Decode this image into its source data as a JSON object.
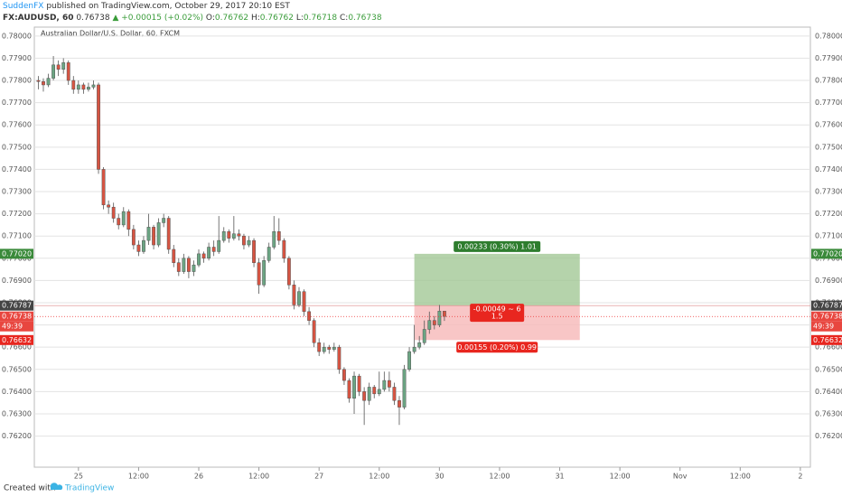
{
  "header": {
    "publisher": "SuddenFX",
    "published": "published on TradingView.com, October 29, 2017 20:10 EST",
    "symbol": "FX:AUDUSD, 60",
    "change": "▲ +0.00015 (+0.02%)",
    "ohlc_prefixes": [
      "O:",
      "H:",
      "L:",
      "C:"
    ]
  },
  "footer": {
    "created": "Created with",
    "brand": "TradingView"
  },
  "chart_data": {
    "type": "candlestick",
    "title": "Australian Dollar/U.S. Dollar, 60, FXCM",
    "up_color": "#6ba583",
    "down_color": "#d75442",
    "grid": true,
    "x": [
      -8,
      -7,
      -6,
      -5,
      -4,
      -3,
      -2,
      -1,
      0,
      1,
      2,
      3,
      4,
      5,
      6,
      7,
      8,
      9,
      10,
      11,
      12,
      13,
      14,
      15,
      16,
      17,
      18,
      19,
      20,
      21,
      22,
      23,
      24,
      25,
      26,
      27,
      28,
      29,
      30,
      31,
      32,
      33,
      34,
      35,
      36,
      37,
      38,
      39,
      40,
      41,
      42,
      43,
      44,
      45,
      46,
      47,
      48,
      49,
      50,
      51,
      52,
      53,
      54,
      55,
      56,
      57,
      58,
      59,
      60,
      61,
      62,
      63,
      64,
      65,
      66,
      67,
      68,
      69,
      70,
      71,
      72,
      73
    ],
    "open": [
      0.778,
      0.77795,
      0.7778,
      0.7781,
      0.7787,
      0.7785,
      0.7788,
      0.778,
      0.7776,
      0.7778,
      0.7776,
      0.7777,
      0.7778,
      0.774,
      0.7724,
      0.7723,
      0.7718,
      0.7715,
      0.7721,
      0.7713,
      0.7706,
      0.7703,
      0.7708,
      0.7714,
      0.7706,
      0.7716,
      0.7718,
      0.7704,
      0.7698,
      0.7694,
      0.77,
      0.7694,
      0.7697,
      0.7702,
      0.77,
      0.7705,
      0.7703,
      0.7708,
      0.7712,
      0.7709,
      0.7711,
      0.771,
      0.7706,
      0.7708,
      0.7698,
      0.7688,
      0.7699,
      0.7705,
      0.7712,
      0.7708,
      0.77,
      0.7688,
      0.7679,
      0.7685,
      0.7676,
      0.7672,
      0.7662,
      0.7658,
      0.766,
      0.7659,
      0.766,
      0.765,
      0.7645,
      0.7637,
      0.7647,
      0.764,
      0.7636,
      0.7642,
      0.7639,
      0.7641,
      0.7645,
      0.7642,
      0.7636,
      0.7633,
      0.765,
      0.7658,
      0.766,
      0.7662,
      0.7668,
      0.7672,
      0.767,
      0.76762
    ],
    "high": [
      0.7782,
      0.7781,
      0.7783,
      0.7791,
      0.7789,
      0.779,
      0.7789,
      0.7782,
      0.778,
      0.7779,
      0.7779,
      0.778,
      0.7779,
      0.7741,
      0.7726,
      0.7725,
      0.772,
      0.7723,
      0.7722,
      0.7715,
      0.7708,
      0.771,
      0.772,
      0.7715,
      0.7718,
      0.772,
      0.7719,
      0.7706,
      0.77,
      0.7702,
      0.7701,
      0.7699,
      0.7704,
      0.7703,
      0.7707,
      0.7708,
      0.7719,
      0.7714,
      0.7713,
      0.7719,
      0.7713,
      0.7711,
      0.771,
      0.7709,
      0.77,
      0.7701,
      0.7707,
      0.7719,
      0.7718,
      0.7709,
      0.7701,
      0.769,
      0.7687,
      0.7686,
      0.7678,
      0.7673,
      0.7664,
      0.7662,
      0.7661,
      0.7662,
      0.7661,
      0.7651,
      0.7646,
      0.7649,
      0.7648,
      0.7642,
      0.7644,
      0.7643,
      0.7649,
      0.7649,
      0.7649,
      0.7644,
      0.7638,
      0.7652,
      0.766,
      0.767,
      0.7665,
      0.7672,
      0.7676,
      0.7674,
      0.7679,
      0.76762
    ],
    "low": [
      0.7776,
      0.7775,
      0.7777,
      0.778,
      0.7782,
      0.7783,
      0.7778,
      0.7774,
      0.7774,
      0.7774,
      0.7775,
      0.7776,
      0.7738,
      0.7722,
      0.772,
      0.7716,
      0.7713,
      0.7714,
      0.771,
      0.7704,
      0.7701,
      0.7702,
      0.7706,
      0.7704,
      0.7705,
      0.7714,
      0.7702,
      0.7696,
      0.7692,
      0.7693,
      0.7691,
      0.7692,
      0.7696,
      0.7698,
      0.7699,
      0.7701,
      0.7702,
      0.7707,
      0.7707,
      0.7708,
      0.7708,
      0.7704,
      0.7705,
      0.7696,
      0.7684,
      0.7687,
      0.7698,
      0.7704,
      0.7706,
      0.7698,
      0.7686,
      0.7677,
      0.7678,
      0.7674,
      0.767,
      0.766,
      0.7656,
      0.7657,
      0.7657,
      0.7658,
      0.7648,
      0.7643,
      0.7635,
      0.763,
      0.7638,
      0.7625,
      0.7634,
      0.7637,
      0.7638,
      0.764,
      0.764,
      0.7634,
      0.7625,
      0.7632,
      0.7649,
      0.7657,
      0.7659,
      0.7661,
      0.7666,
      0.7668,
      0.7669,
      0.76718
    ],
    "close": [
      0.77795,
      0.7778,
      0.7781,
      0.7787,
      0.7785,
      0.7788,
      0.778,
      0.7776,
      0.7778,
      0.7776,
      0.7777,
      0.7778,
      0.774,
      0.7724,
      0.7723,
      0.7718,
      0.7715,
      0.7721,
      0.7713,
      0.7706,
      0.7703,
      0.7708,
      0.7714,
      0.7706,
      0.7716,
      0.7718,
      0.7704,
      0.7698,
      0.7694,
      0.77,
      0.7694,
      0.7697,
      0.7702,
      0.77,
      0.7705,
      0.7703,
      0.7708,
      0.7712,
      0.7709,
      0.7711,
      0.771,
      0.7706,
      0.7708,
      0.7698,
      0.7688,
      0.7699,
      0.7705,
      0.7712,
      0.7708,
      0.77,
      0.7688,
      0.7679,
      0.7685,
      0.7676,
      0.7672,
      0.7662,
      0.7658,
      0.766,
      0.7659,
      0.766,
      0.765,
      0.7645,
      0.7637,
      0.7647,
      0.764,
      0.7636,
      0.7642,
      0.7639,
      0.7641,
      0.7645,
      0.7642,
      0.7636,
      0.7633,
      0.765,
      0.7658,
      0.766,
      0.7662,
      0.7668,
      0.7672,
      0.767,
      0.76762,
      0.76738
    ],
    "xlim": [
      -8.8,
      146
    ],
    "xticks": [
      {
        "value": 0,
        "label": "25"
      },
      {
        "value": 12,
        "label": "12:00"
      },
      {
        "value": 24,
        "label": "26"
      },
      {
        "value": 36,
        "label": "12:00"
      },
      {
        "value": 48,
        "label": "27"
      },
      {
        "value": 60,
        "label": "12:00"
      },
      {
        "value": 72,
        "label": "30"
      },
      {
        "value": 84,
        "label": "12:00"
      },
      {
        "value": 96,
        "label": "31"
      },
      {
        "value": 108,
        "label": "12:00"
      },
      {
        "value": 120,
        "label": "Nov"
      },
      {
        "value": 132,
        "label": "12:00"
      },
      {
        "value": 144,
        "label": "2"
      }
    ],
    "ylim": [
      0.7606,
      0.7804
    ],
    "yticks": [
      {
        "value": 0.762,
        "label": "0.76200"
      },
      {
        "value": 0.763,
        "label": "0.76300"
      },
      {
        "value": 0.764,
        "label": "0.76400"
      },
      {
        "value": 0.765,
        "label": "0.76500"
      },
      {
        "value": 0.766,
        "label": "0.76600"
      },
      {
        "value": 0.767,
        "label": "0.76700"
      },
      {
        "value": 0.768,
        "label": "0.76800"
      },
      {
        "value": 0.769,
        "label": "0.76900"
      },
      {
        "value": 0.77,
        "label": "0.77000"
      },
      {
        "value": 0.771,
        "label": "0.77100"
      },
      {
        "value": 0.772,
        "label": "0.77200"
      },
      {
        "value": 0.773,
        "label": "0.77300"
      },
      {
        "value": 0.774,
        "label": "0.77400"
      },
      {
        "value": 0.775,
        "label": "0.77500"
      },
      {
        "value": 0.776,
        "label": "0.77600"
      },
      {
        "value": 0.777,
        "label": "0.77700"
      },
      {
        "value": 0.778,
        "label": "0.77800"
      },
      {
        "value": 0.779,
        "label": "0.77900"
      },
      {
        "value": 0.78,
        "label": "0.78000"
      }
    ],
    "countdown": "49:39",
    "position": {
      "x_start": 67,
      "x_end": 100,
      "target": {
        "value": 0.7702,
        "label": "0.77020"
      },
      "entry": 0.76787,
      "stop": 0.76632,
      "target_label": "0.00233 (0.30%) 1.01",
      "mid_label": "-0.00049 ~ 6",
      "ratio_label": "1.5",
      "stop_label": "0.00155 (0.20%) 0.99"
    }
  }
}
